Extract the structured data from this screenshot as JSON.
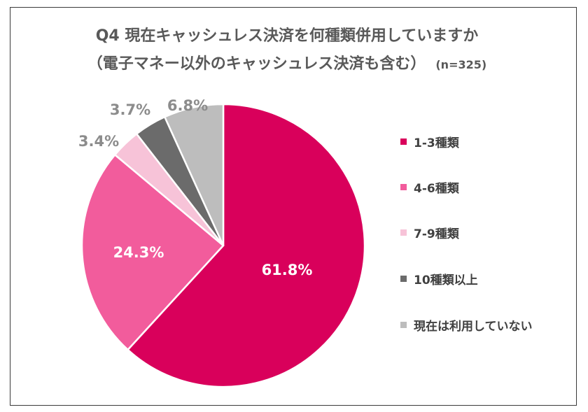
{
  "chart_data": {
    "type": "pie",
    "title_line1": "Q4 現在キャッシュレス決済を何種類併用していますか",
    "title_line2": "（電子マネー以外のキャッシュレス決済も含む）",
    "sample_size": "(n=325)",
    "categories": [
      "1-3種類",
      "4-6種類",
      "7-9種類",
      "10種類以上",
      "現在は利用していない"
    ],
    "values": [
      61.8,
      24.3,
      3.4,
      3.7,
      6.8
    ],
    "labels": [
      "61.8%",
      "24.3%",
      "3.4%",
      "3.7%",
      "6.8%"
    ],
    "colors": [
      "#d9005b",
      "#f25c9c",
      "#f7c3d8",
      "#6b6b6b",
      "#bdbdbd"
    ],
    "label_colors": [
      "#ffffff",
      "#ffffff",
      "#8c8c8c",
      "#8c8c8c",
      "#8c8c8c"
    ],
    "start": "12 o'clock, clockwise",
    "legend_position": "right"
  }
}
